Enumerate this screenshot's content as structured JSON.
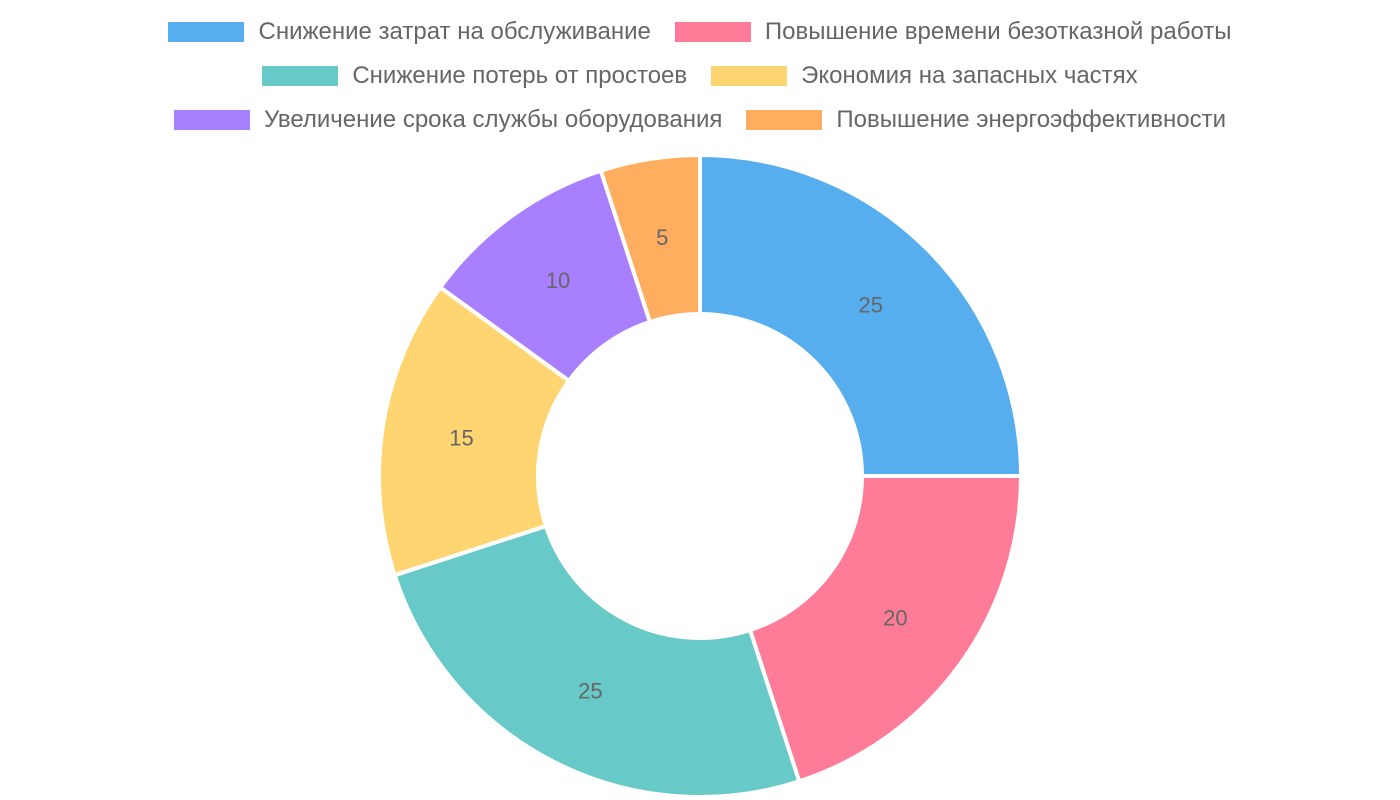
{
  "chart_data": {
    "type": "pie",
    "variant": "doughnut",
    "title": "",
    "legend_position": "top",
    "categories": [
      "Снижение затрат на обслуживание",
      "Повышение времени безотказной работы",
      "Снижение потерь от простоев",
      "Экономия на запасных частях",
      "Увеличение срока службы оборудования",
      "Повышение энергоэффективности"
    ],
    "values": [
      25,
      20,
      25,
      15,
      10,
      5
    ],
    "colors": [
      "#56AEEE",
      "#FF7C98",
      "#68C9C9",
      "#FFD572",
      "#A880FF",
      "#FFAD5E"
    ]
  },
  "legend": {
    "rows": [
      [
        {
          "label": "Снижение затрат на обслуживание",
          "color": "#56AEEE"
        },
        {
          "label": "Повышение времени безотказной работы",
          "color": "#FF7C98"
        }
      ],
      [
        {
          "label": "Снижение потерь от простоев",
          "color": "#68C9C9"
        },
        {
          "label": "Экономия на запасных частях",
          "color": "#FFD572"
        }
      ],
      [
        {
          "label": "Увеличение срока службы оборудования",
          "color": "#A880FF"
        },
        {
          "label": "Повышение энергоэффективности",
          "color": "#FFAD5E"
        }
      ]
    ]
  }
}
